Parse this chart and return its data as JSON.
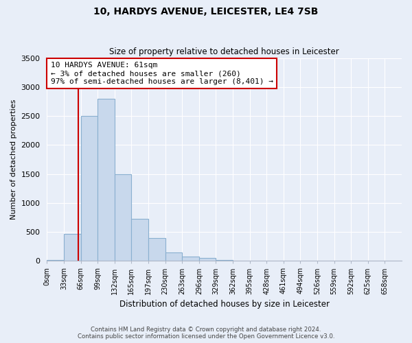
{
  "title": "10, HARDYS AVENUE, LEICESTER, LE4 7SB",
  "subtitle": "Size of property relative to detached houses in Leicester",
  "xlabel": "Distribution of detached houses by size in Leicester",
  "ylabel": "Number of detached properties",
  "bar_labels": [
    "0sqm",
    "33sqm",
    "66sqm",
    "99sqm",
    "132sqm",
    "165sqm",
    "197sqm",
    "230sqm",
    "263sqm",
    "296sqm",
    "329sqm",
    "362sqm",
    "395sqm",
    "428sqm",
    "461sqm",
    "494sqm",
    "526sqm",
    "559sqm",
    "592sqm",
    "625sqm",
    "658sqm"
  ],
  "bar_values": [
    15,
    470,
    2500,
    2800,
    1500,
    720,
    390,
    150,
    75,
    55,
    20,
    0,
    0,
    0,
    0,
    0,
    0,
    0,
    0,
    0,
    0
  ],
  "bar_color": "#c8d8ec",
  "bar_edge_color": "#8ab0d0",
  "ylim": [
    0,
    3500
  ],
  "annotation_title": "10 HARDYS AVENUE: 61sqm",
  "annotation_line1": "← 3% of detached houses are smaller (260)",
  "annotation_line2": "97% of semi-detached houses are larger (8,401) →",
  "annotation_box_facecolor": "#ffffff",
  "annotation_box_edgecolor": "#cc0000",
  "red_line_color": "#cc0000",
  "footer_line1": "Contains HM Land Registry data © Crown copyright and database right 2024.",
  "footer_line2": "Contains public sector information licensed under the Open Government Licence v3.0.",
  "background_color": "#e8eef8",
  "plot_background": "#e8eef8",
  "grid_color": "#ffffff",
  "spine_color": "#b0b8c8"
}
